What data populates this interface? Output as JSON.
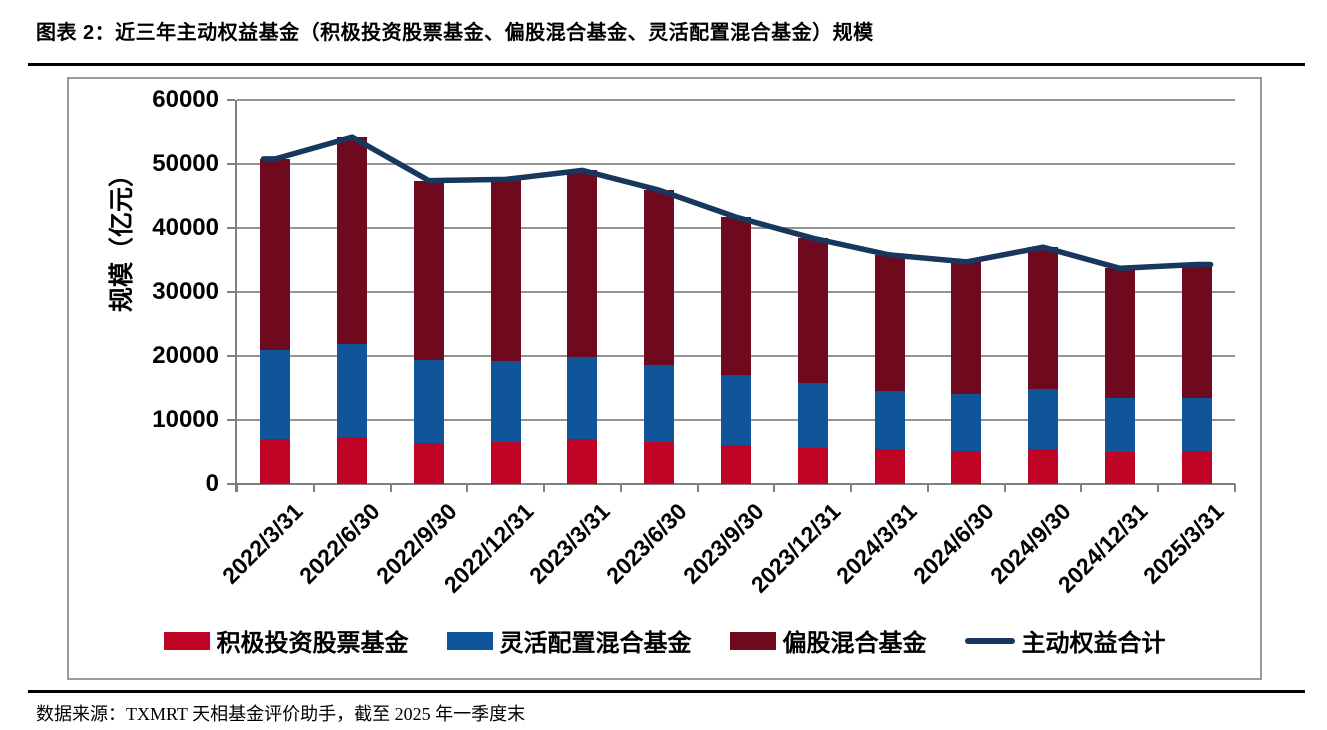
{
  "page": {
    "title": "图表 2：近三年主动权益基金（积极投资股票基金、偏股混合基金、灵活配置混合基金）规模",
    "footer": "数据来源：TXMRT 天相基金评价助手，截至 2025 年一季度末"
  },
  "chart_data": {
    "type": "bar",
    "subtype": "stacked-bars-with-total-line",
    "title": "",
    "xlabel": "",
    "ylabel": "规模（亿元）",
    "ylim": [
      0,
      60000
    ],
    "y_ticks": [
      0,
      10000,
      20000,
      30000,
      40000,
      50000,
      60000
    ],
    "grid": true,
    "legend_position": "bottom",
    "categories": [
      "2022/3/31",
      "2022/6/30",
      "2022/9/30",
      "2022/12/31",
      "2023/3/31",
      "2023/6/30",
      "2023/9/30",
      "2023/12/31",
      "2024/3/31",
      "2024/6/30",
      "2024/9/30",
      "2024/12/31",
      "2025/3/31"
    ],
    "series": [
      {
        "name": "积极投资股票基金",
        "type": "bar",
        "color": "#C00425",
        "values": [
          7000,
          7300,
          6400,
          6600,
          7000,
          6600,
          6100,
          5700,
          5400,
          5200,
          5500,
          5000,
          5200
        ]
      },
      {
        "name": "灵活配置混合基金",
        "type": "bar",
        "color": "#10549A",
        "values": [
          14000,
          14600,
          13000,
          12600,
          12800,
          12000,
          10900,
          10100,
          9200,
          8800,
          9400,
          8500,
          8200
        ]
      },
      {
        "name": "偏股混合基金",
        "type": "bar",
        "color": "#6E091E",
        "values": [
          29800,
          32300,
          28000,
          28400,
          29200,
          27300,
          24700,
          22600,
          21200,
          20700,
          22100,
          20200,
          20900
        ]
      },
      {
        "name": "主动权益合计",
        "type": "line",
        "color": "#17375E",
        "values": [
          50800,
          54200,
          47400,
          47600,
          49000,
          45900,
          41700,
          38400,
          35800,
          34700,
          37000,
          33700,
          34300
        ]
      }
    ],
    "colors": {
      "grid": "#949494",
      "axis": "#7f7f7f"
    }
  }
}
